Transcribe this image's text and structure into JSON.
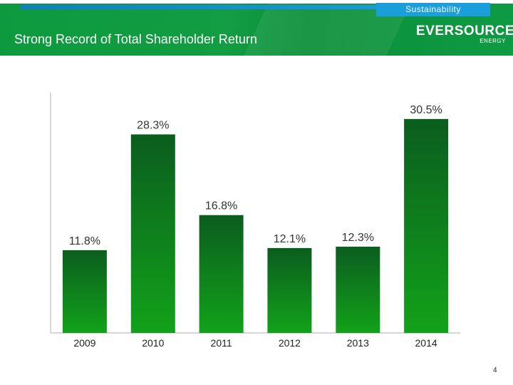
{
  "header": {
    "section_label": "Sustainability",
    "title": "Strong Record of Total Shareholder Return",
    "logo_text": "EVERSOURCE",
    "logo_subtext": "ENERGY"
  },
  "page_number": "4",
  "colors": {
    "header_green": "#0d9a3e",
    "tab_blue": "#1a9fdc",
    "bar_top": "#0b5d1e",
    "bar_bottom": "#12a21a"
  },
  "chart_data": {
    "type": "bar",
    "categories": [
      "2009",
      "2010",
      "2011",
      "2012",
      "2013",
      "2014"
    ],
    "values": [
      11.8,
      28.3,
      16.8,
      12.1,
      12.3,
      30.5
    ],
    "value_labels": [
      "11.8%",
      "28.3%",
      "16.8%",
      "12.1%",
      "12.3%",
      "30.5%"
    ],
    "title": "",
    "xlabel": "",
    "ylabel": "",
    "ylim": [
      0,
      31.2
    ],
    "grid": false,
    "legend": "none"
  }
}
